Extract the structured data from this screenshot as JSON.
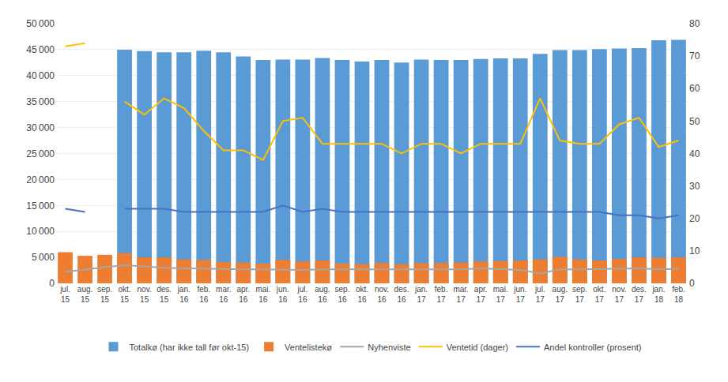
{
  "chart_data": {
    "type": "bar",
    "categories": [
      "jul.\n15",
      "aug.\n15",
      "sep.\n15",
      "okt.\n15",
      "nov.\n15",
      "des.\n15",
      "jan.\n16",
      "feb.\n16",
      "mar.\n16",
      "apr.\n16",
      "mai.\n16",
      "jun.\n16",
      "jul.\n16",
      "aug.\n16",
      "sep.\n16",
      "okt.\n16",
      "nov.\n16",
      "des.\n16",
      "jan.\n17",
      "feb.\n17",
      "mar.\n17",
      "apr.\n17",
      "mai.\n17",
      "jun.\n17",
      "jul.\n17",
      "aug.\n17",
      "sep.\n17",
      "okt.\n17",
      "nov.\n17",
      "des.\n17",
      "jan.\n18",
      "feb.\n18"
    ],
    "series": [
      {
        "name": "Totalkø (har ikke tall før okt-15)",
        "type": "bar",
        "color": "#5B9BD5",
        "values": [
          0,
          0,
          0,
          45000,
          44700,
          44500,
          44500,
          44800,
          44500,
          43700,
          43000,
          43100,
          43100,
          43400,
          43000,
          42700,
          43000,
          42500,
          43100,
          43000,
          43000,
          43200,
          43300,
          43300,
          44200,
          44900,
          44900,
          45100,
          45200,
          45300,
          46800,
          46900
        ]
      },
      {
        "name": "Ventelistekø",
        "type": "bar",
        "color": "#ED7D31",
        "values": [
          6000,
          5300,
          5500,
          5800,
          5000,
          5000,
          4600,
          4500,
          4100,
          4000,
          3800,
          4500,
          4200,
          4400,
          3800,
          3700,
          3900,
          3700,
          3900,
          3900,
          4000,
          4200,
          4300,
          4400,
          4600,
          5100,
          4600,
          4400,
          4700,
          5000,
          4900,
          5000
        ]
      },
      {
        "name": "Nyhenviste",
        "type": "line",
        "color": "#A5A5A5",
        "values": [
          2200,
          2700,
          3100,
          3500,
          3200,
          3000,
          2900,
          2800,
          2800,
          2700,
          2700,
          2600,
          2600,
          2700,
          2700,
          2800,
          2700,
          2700,
          2800,
          2700,
          2700,
          2900,
          2700,
          2600,
          1900,
          2700,
          2700,
          2800,
          2900,
          2900,
          2700,
          2800
        ]
      },
      {
        "name": "Ventetid (dager)",
        "type": "line",
        "axis": "y2",
        "color": "#FFC000",
        "values": [
          73,
          74,
          null,
          56,
          52,
          57,
          54,
          47,
          41,
          41,
          38,
          50,
          51,
          43,
          43,
          43,
          43,
          40,
          43,
          43,
          40,
          43,
          43,
          43,
          57,
          44,
          43,
          43,
          49,
          51,
          42,
          44
        ]
      },
      {
        "name": "Andel kontroller (prosent)",
        "type": "line",
        "axis": "y2",
        "color": "#4472C4",
        "values": [
          23,
          22,
          null,
          23,
          23,
          23,
          22,
          22,
          22,
          22,
          22,
          24,
          22,
          23,
          22,
          22,
          22,
          22,
          22,
          22,
          22,
          22,
          22,
          22,
          22,
          22,
          22,
          22,
          21,
          21,
          20,
          21
        ]
      }
    ],
    "ylim": [
      0,
      50000
    ],
    "yticks": [
      0,
      {
        "value": 5000,
        "label": "5 000"
      },
      {
        "value": 10000,
        "label": "10 000"
      },
      {
        "value": 15000,
        "label": "15 000"
      },
      {
        "value": 20000,
        "label": "20 000"
      },
      {
        "value": 25000,
        "label": "25 000"
      },
      {
        "value": 30000,
        "label": "30 000"
      },
      {
        "value": 35000,
        "label": "35 000"
      },
      {
        "value": 40000,
        "label": "40 000"
      },
      {
        "value": 45000,
        "label": "45 000"
      },
      {
        "value": 50000,
        "label": "50 000"
      }
    ],
    "y2lim": [
      0,
      80
    ],
    "y2ticks": [
      0,
      10,
      20,
      30,
      40,
      50,
      60,
      70,
      80
    ],
    "grid": true,
    "legend": "bottom"
  }
}
